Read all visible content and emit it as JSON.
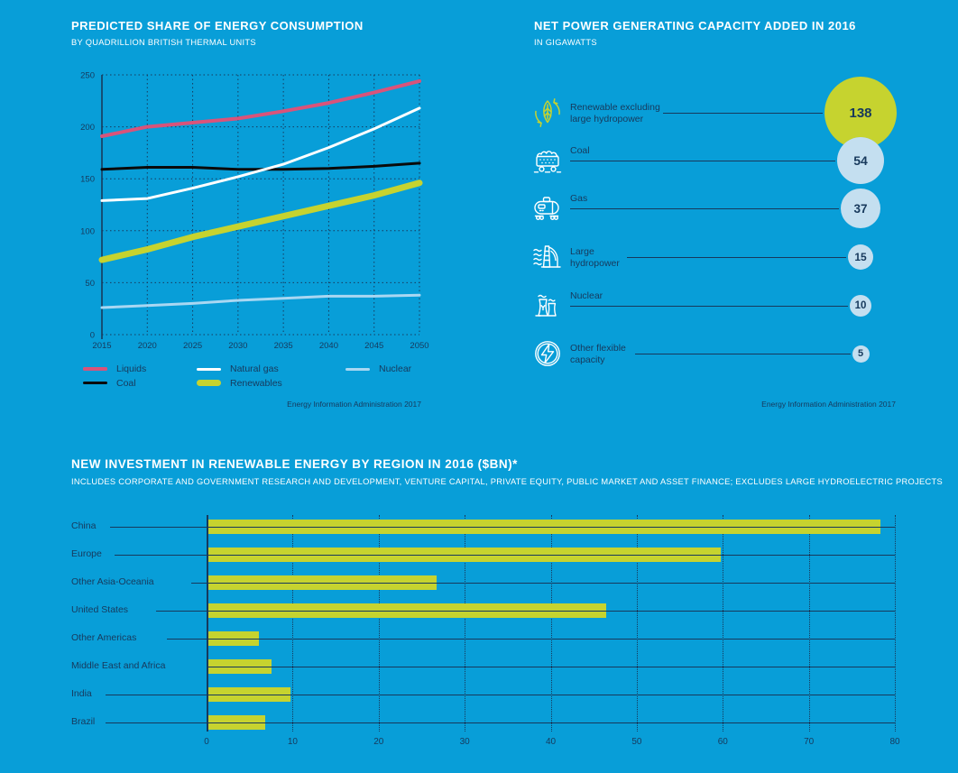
{
  "page": {
    "background": "#089ED8"
  },
  "colors": {
    "navy": "#17395C",
    "white": "#FFFFFF",
    "yellow_green": "#C6D32F",
    "pink": "#D9537A",
    "black": "#0A0A0A",
    "pale_blue": "#A9D7F2",
    "circle_blue": "#C4DFF0",
    "overlap_olive": "#90AC35"
  },
  "sections": {
    "energy_consumption": {
      "title": "PREDICTED SHARE OF ENERGY CONSUMPTION",
      "subtitle": "BY QUADRILLION BRITISH THERMAL UNITS",
      "source": "Energy Information Administration 2017"
    },
    "capacity": {
      "title": "NET POWER GENERATING CAPACITY ADDED IN 2016",
      "subtitle": "IN GIGAWATTS",
      "source": "Energy Information Administration 2017"
    },
    "investment": {
      "title": "NEW INVESTMENT IN RENEWABLE ENERGY BY REGION IN 2016 ($BN)*",
      "subtitle": "INCLUDES CORPORATE AND GOVERNMENT RESEARCH AND DEVELOPMENT, VENTURE CAPITAL, PRIVATE EQUITY, PUBLIC MARKET AND ASSET FINANCE; EXCLUDES LARGE HYDROELECTRIC PROJECTS"
    }
  },
  "chart_data": [
    {
      "type": "line",
      "title": "Predicted share of energy consumption",
      "ylabel": "quadrillion British thermal units",
      "x": [
        2015,
        2020,
        2025,
        2030,
        2035,
        2040,
        2045,
        2050
      ],
      "ylim": [
        0,
        250
      ],
      "yticks": [
        0,
        50,
        100,
        150,
        200,
        250
      ],
      "grid": "dotted",
      "legend_position": "bottom",
      "series": [
        {
          "name": "Liquids",
          "color": "#D9537A",
          "stroke_width": 4,
          "values": [
            191,
            200,
            204,
            208,
            215,
            223,
            233,
            244
          ]
        },
        {
          "name": "Coal",
          "color": "#0A0A0A",
          "stroke_width": 3,
          "values": [
            159,
            161,
            161,
            159,
            159,
            160,
            162,
            165
          ]
        },
        {
          "name": "Natural gas",
          "color": "#FFFFFF",
          "stroke_width": 3,
          "values": [
            129,
            131,
            141,
            152,
            164,
            180,
            198,
            218
          ]
        },
        {
          "name": "Renewables",
          "color": "#C6D32F",
          "stroke_width": 7,
          "values": [
            72,
            82,
            94,
            104,
            114,
            124,
            134,
            146
          ]
        },
        {
          "name": "Nuclear",
          "color": "#A9D7F2",
          "stroke_width": 3,
          "values": [
            26,
            28,
            30,
            33,
            35,
            37,
            37,
            38
          ]
        }
      ]
    },
    {
      "type": "bubble",
      "title": "Net power generating capacity added in 2016",
      "unit": "gigawatts",
      "categories": [
        "Renewable excluding large hydropower",
        "Coal",
        "Gas",
        "Large hydropower",
        "Nuclear",
        "Other flexible capacity"
      ],
      "label_lines": [
        [
          "Renewable excluding",
          "large hydropower"
        ],
        [
          "Coal"
        ],
        [
          "Gas"
        ],
        [
          "Large",
          "hydropower"
        ],
        [
          "Nuclear"
        ],
        [
          "Other flexible",
          "capacity"
        ]
      ],
      "values": [
        138,
        54,
        37,
        15,
        10,
        5
      ],
      "icons": [
        "leaf-recycle-icon",
        "coal-cart-icon",
        "gas-tank-icon",
        "hydropower-dam-icon",
        "nuclear-plant-icon",
        "lightning-bolt-icon"
      ]
    },
    {
      "type": "bar",
      "orientation": "horizontal",
      "title": "New investment in renewable energy by region in 2016 ($bn)",
      "categories": [
        "China",
        "Europe",
        "Other Asia-Oceania",
        "United States",
        "Other Americas",
        "Middle East and Africa",
        "India",
        "Brazil"
      ],
      "values": [
        78.3,
        59.8,
        26.7,
        46.4,
        6.1,
        7.6,
        9.7,
        6.8
      ],
      "xlim": [
        0,
        80
      ],
      "xticks": [
        0,
        10,
        20,
        30,
        40,
        50,
        60,
        70,
        80
      ],
      "bar_color": "#C6D32F",
      "grid": "dotted"
    }
  ]
}
